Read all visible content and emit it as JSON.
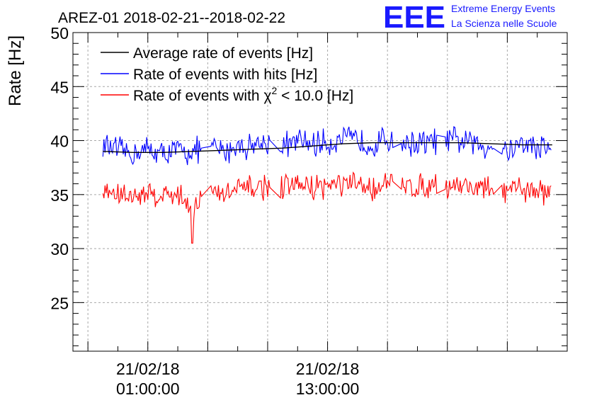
{
  "header": {
    "title": "AREZ-01 2018-02-21--2018-02-22",
    "logo_letters": "EEE",
    "logo_line1": "Extreme Energy Events",
    "logo_line2": "La Scienza nelle Scuole"
  },
  "chart_data": {
    "type": "line",
    "title": "AREZ-01 2018-02-21--2018-02-22",
    "xlabel": "",
    "ylabel": "Rate [Hz]",
    "ylim": [
      20.5,
      50
    ],
    "yticks": [
      25,
      30,
      35,
      40,
      45,
      50
    ],
    "xlim": [
      "2018-02-20T20:00:00",
      "2018-02-22T05:00:00"
    ],
    "xticks": [
      {
        "at": "2018-02-21T01:00:00",
        "line1": "21/02/18",
        "line2": "01:00:00"
      },
      {
        "at": "2018-02-21T13:00:00",
        "line1": "21/02/18",
        "line2": "13:00:00"
      }
    ],
    "grid": true,
    "legend_position": "top-left",
    "legend": [
      {
        "name": "Average rate of events [Hz]",
        "color": "#000000"
      },
      {
        "name": "Rate of events with hits [Hz]",
        "color": "#0000ff"
      },
      {
        "name_pre": "Rate of events with ",
        "name_chi": "χ",
        "name_sup": "2",
        "name_post": " < 10.0 [Hz]",
        "color": "#ff0000"
      }
    ],
    "series": [
      {
        "name": "Average rate of events [Hz]",
        "color": "#000000",
        "x": [
          "2018-02-20T22:00:00",
          "2018-02-21T00:00:00",
          "2018-02-21T02:00:00",
          "2018-02-21T04:00:00",
          "2018-02-21T06:00:00",
          "2018-02-21T08:00:00",
          "2018-02-21T10:00:00",
          "2018-02-21T12:00:00",
          "2018-02-21T14:00:00",
          "2018-02-21T16:00:00",
          "2018-02-21T18:00:00",
          "2018-02-21T20:00:00",
          "2018-02-21T22:00:00",
          "2018-02-22T00:00:00",
          "2018-02-22T02:00:00",
          "2018-02-22T04:00:00"
        ],
        "values": [
          39.0,
          38.9,
          38.9,
          39.0,
          39.1,
          39.2,
          39.3,
          39.5,
          39.7,
          39.8,
          39.8,
          39.8,
          39.8,
          39.7,
          39.6,
          39.6
        ]
      },
      {
        "name": "Rate of events with hits [Hz]",
        "color": "#0000ff",
        "x": [
          "2018-02-20T22:00:00",
          "2018-02-20T23:00:00",
          "2018-02-21T00:00:00",
          "2018-02-21T01:00:00",
          "2018-02-21T02:00:00",
          "2018-02-21T03:00:00",
          "2018-02-21T04:00:00",
          "2018-02-21T05:00:00",
          "2018-02-21T06:00:00",
          "2018-02-21T07:00:00",
          "2018-02-21T08:00:00",
          "2018-02-21T09:00:00",
          "2018-02-21T10:00:00",
          "2018-02-21T11:00:00",
          "2018-02-21T12:00:00",
          "2018-02-21T13:00:00",
          "2018-02-21T14:00:00",
          "2018-02-21T15:00:00",
          "2018-02-21T16:00:00",
          "2018-02-21T17:00:00",
          "2018-02-21T18:00:00",
          "2018-02-21T19:00:00",
          "2018-02-21T20:00:00",
          "2018-02-21T21:00:00",
          "2018-02-21T22:00:00",
          "2018-02-21T23:00:00",
          "2018-02-22T00:00:00",
          "2018-02-22T01:00:00",
          "2018-02-22T02:00:00",
          "2018-02-22T03:00:00",
          "2018-02-22T04:00:00"
        ],
        "values": [
          39.6,
          39.0,
          38.8,
          39.2,
          38.7,
          39.1,
          38.9,
          39.4,
          39.0,
          39.5,
          39.6,
          39.8,
          39.5,
          39.9,
          39.7,
          39.8,
          40.1,
          40.0,
          39.6,
          40.2,
          39.8,
          39.7,
          39.9,
          40.0,
          40.0,
          39.6,
          39.5,
          39.2,
          39.7,
          39.4,
          39.3
        ],
        "spread": 1.5
      },
      {
        "name": "Rate of events with χ2 < 10.0 [Hz]",
        "color": "#ff0000",
        "x": [
          "2018-02-20T22:00:00",
          "2018-02-20T23:00:00",
          "2018-02-21T00:00:00",
          "2018-02-21T01:00:00",
          "2018-02-21T02:00:00",
          "2018-02-21T03:00:00",
          "2018-02-21T04:00:00",
          "2018-02-21T05:00:00",
          "2018-02-21T06:00:00",
          "2018-02-21T07:00:00",
          "2018-02-21T08:00:00",
          "2018-02-21T09:00:00",
          "2018-02-21T10:00:00",
          "2018-02-21T11:00:00",
          "2018-02-21T12:00:00",
          "2018-02-21T13:00:00",
          "2018-02-21T14:00:00",
          "2018-02-21T15:00:00",
          "2018-02-21T16:00:00",
          "2018-02-21T17:00:00",
          "2018-02-21T18:00:00",
          "2018-02-21T19:00:00",
          "2018-02-21T20:00:00",
          "2018-02-21T21:00:00",
          "2018-02-21T22:00:00",
          "2018-02-21T23:00:00",
          "2018-02-22T00:00:00",
          "2018-02-22T01:00:00",
          "2018-02-22T02:00:00",
          "2018-02-22T03:00:00",
          "2018-02-22T04:00:00"
        ],
        "values": [
          35.3,
          35.0,
          34.8,
          35.2,
          34.9,
          35.1,
          33.8,
          35.3,
          35.0,
          35.4,
          35.6,
          35.8,
          35.5,
          35.9,
          35.7,
          35.8,
          35.9,
          35.8,
          35.6,
          36.0,
          35.8,
          35.7,
          35.9,
          35.9,
          35.9,
          35.6,
          35.5,
          35.2,
          35.6,
          35.3,
          35.1
        ],
        "spread": 1.4,
        "outlier": {
          "x": "2018-02-21T04:00:00",
          "value": 30.5
        }
      }
    ]
  }
}
